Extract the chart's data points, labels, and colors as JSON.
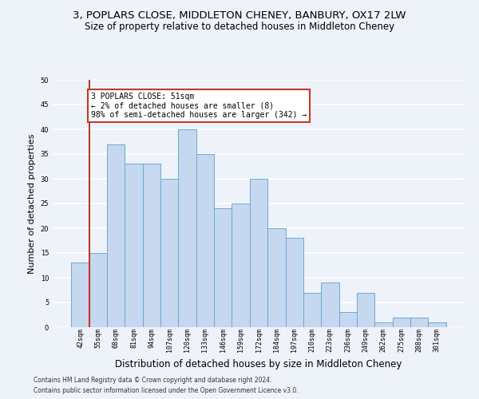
{
  "title1": "3, POPLARS CLOSE, MIDDLETON CHENEY, BANBURY, OX17 2LW",
  "title2": "Size of property relative to detached houses in Middleton Cheney",
  "xlabel": "Distribution of detached houses by size in Middleton Cheney",
  "ylabel": "Number of detached properties",
  "categories": [
    "42sqm",
    "55sqm",
    "68sqm",
    "81sqm",
    "94sqm",
    "107sqm",
    "120sqm",
    "133sqm",
    "146sqm",
    "159sqm",
    "172sqm",
    "184sqm",
    "197sqm",
    "210sqm",
    "223sqm",
    "236sqm",
    "249sqm",
    "262sqm",
    "275sqm",
    "288sqm",
    "301sqm"
  ],
  "values": [
    13,
    15,
    37,
    33,
    33,
    30,
    40,
    35,
    24,
    25,
    30,
    20,
    18,
    7,
    9,
    3,
    7,
    1,
    2,
    2,
    1
  ],
  "bar_color": "#c5d8ef",
  "bar_edge_color": "#6aaad4",
  "annotation_text": "3 POPLARS CLOSE: 51sqm\n← 2% of detached houses are smaller (8)\n98% of semi-detached houses are larger (342) →",
  "annotation_box_color": "white",
  "annotation_box_edge_color": "#c0392b",
  "vline_color": "#c0392b",
  "ylim": [
    0,
    50
  ],
  "yticks": [
    0,
    5,
    10,
    15,
    20,
    25,
    30,
    35,
    40,
    45,
    50
  ],
  "footer1": "Contains HM Land Registry data © Crown copyright and database right 2024.",
  "footer2": "Contains public sector information licensed under the Open Government Licence v3.0.",
  "bg_color": "#eef2f9",
  "grid_color": "#ffffff",
  "title1_fontsize": 9.5,
  "title2_fontsize": 8.5,
  "xlabel_fontsize": 8.5,
  "ylabel_fontsize": 8,
  "footer_fontsize": 5.5,
  "annot_fontsize": 7,
  "tick_fontsize": 6
}
